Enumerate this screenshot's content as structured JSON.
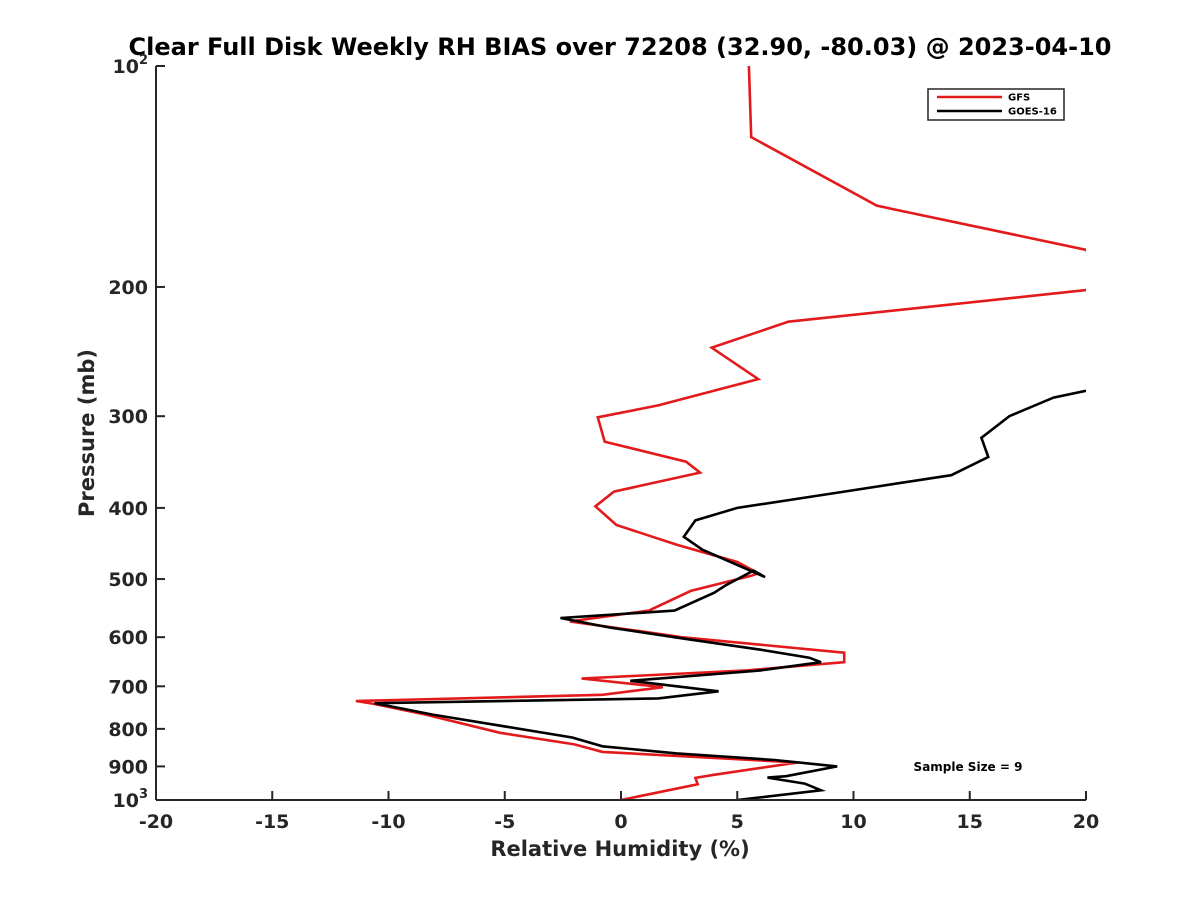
{
  "chart_data": {
    "type": "line",
    "title": "Clear Full Disk Weekly RH BIAS over 72208 (32.90, -80.03) @ 2023-04-10",
    "xlabel": "Relative Humidity (%)",
    "ylabel": "Pressure (mb)",
    "xlim": [
      -20,
      20
    ],
    "ylim": [
      100,
      1000
    ],
    "y_scale": "log",
    "y_reversed": true,
    "x_ticks": [
      -20,
      -15,
      -10,
      -5,
      0,
      5,
      10,
      15,
      20
    ],
    "y_ticks": [
      {
        "value": 100,
        "label": "10",
        "sup": "2"
      },
      {
        "value": 200,
        "label": "200",
        "sup": ""
      },
      {
        "value": 300,
        "label": "300",
        "sup": ""
      },
      {
        "value": 400,
        "label": "400",
        "sup": ""
      },
      {
        "value": 500,
        "label": "500",
        "sup": ""
      },
      {
        "value": 600,
        "label": "600",
        "sup": ""
      },
      {
        "value": 700,
        "label": "700",
        "sup": ""
      },
      {
        "value": 800,
        "label": "800",
        "sup": ""
      },
      {
        "value": 900,
        "label": "900",
        "sup": ""
      },
      {
        "value": 1000,
        "label": "10",
        "sup": "3"
      }
    ],
    "grid": false,
    "legend_position": "top-right",
    "series": [
      {
        "name": "GFS",
        "color": "#e31a1c",
        "points": [
          [
            5.5,
            100
          ],
          [
            5.6,
            125
          ],
          [
            11.0,
            155
          ],
          [
            20.0,
            178
          ],
          [
            20.1,
            180
          ],
          [
            20.5,
            200
          ],
          [
            20.0,
            202
          ],
          [
            7.2,
            223
          ],
          [
            3.9,
            242
          ],
          [
            5.9,
            267
          ],
          [
            1.6,
            290
          ],
          [
            -1.0,
            301
          ],
          [
            -0.7,
            325
          ],
          [
            2.8,
            346
          ],
          [
            3.4,
            358
          ],
          [
            -0.3,
            380
          ],
          [
            -1.1,
            398
          ],
          [
            -0.2,
            422
          ],
          [
            2.4,
            449
          ],
          [
            5.0,
            474
          ],
          [
            5.9,
            491
          ],
          [
            5.6,
            495
          ],
          [
            3.0,
            519
          ],
          [
            1.2,
            552
          ],
          [
            -2.2,
            571
          ],
          [
            1.0,
            590
          ],
          [
            2.6,
            600
          ],
          [
            9.6,
            630
          ],
          [
            9.6,
            649
          ],
          [
            5.4,
            666
          ],
          [
            -1.7,
            683
          ],
          [
            1.8,
            702
          ],
          [
            -0.8,
            719
          ],
          [
            -11.4,
            733
          ],
          [
            -10.6,
            740
          ],
          [
            -8.4,
            765
          ],
          [
            -5.2,
            810
          ],
          [
            -2.0,
            840
          ],
          [
            -0.8,
            860
          ],
          [
            7.6,
            889
          ],
          [
            4.0,
            924
          ],
          [
            3.2,
            933
          ],
          [
            3.3,
            952
          ],
          [
            0.0,
            1000
          ]
        ]
      },
      {
        "name": "GOES-16",
        "color": "#000000",
        "points": [
          [
            20.0,
            277
          ],
          [
            18.6,
            283
          ],
          [
            16.7,
            300
          ],
          [
            15.5,
            321
          ],
          [
            15.8,
            341
          ],
          [
            14.2,
            361
          ],
          [
            9.6,
            380
          ],
          [
            5.0,
            400
          ],
          [
            3.2,
            416
          ],
          [
            2.7,
            438
          ],
          [
            3.5,
            456
          ],
          [
            6.2,
            497
          ],
          [
            5.7,
            487
          ],
          [
            4.5,
            510
          ],
          [
            4.0,
            522
          ],
          [
            2.3,
            552
          ],
          [
            -2.6,
            565
          ],
          [
            -0.5,
            582
          ],
          [
            2.9,
            604
          ],
          [
            6.0,
            624
          ],
          [
            8.1,
            640
          ],
          [
            8.6,
            649
          ],
          [
            6.0,
            666
          ],
          [
            0.4,
            688
          ],
          [
            4.2,
            711
          ],
          [
            1.6,
            727
          ],
          [
            -10.6,
            738
          ],
          [
            -8.1,
            765
          ],
          [
            -2.1,
            822
          ],
          [
            -0.8,
            845
          ],
          [
            2.4,
            864
          ],
          [
            6.6,
            882
          ],
          [
            9.3,
            900
          ],
          [
            7.1,
            928
          ],
          [
            6.3,
            932
          ],
          [
            7.9,
            950
          ],
          [
            8.6,
            970
          ],
          [
            5.0,
            1000
          ]
        ]
      }
    ],
    "annotation": "Sample Size = 9"
  }
}
